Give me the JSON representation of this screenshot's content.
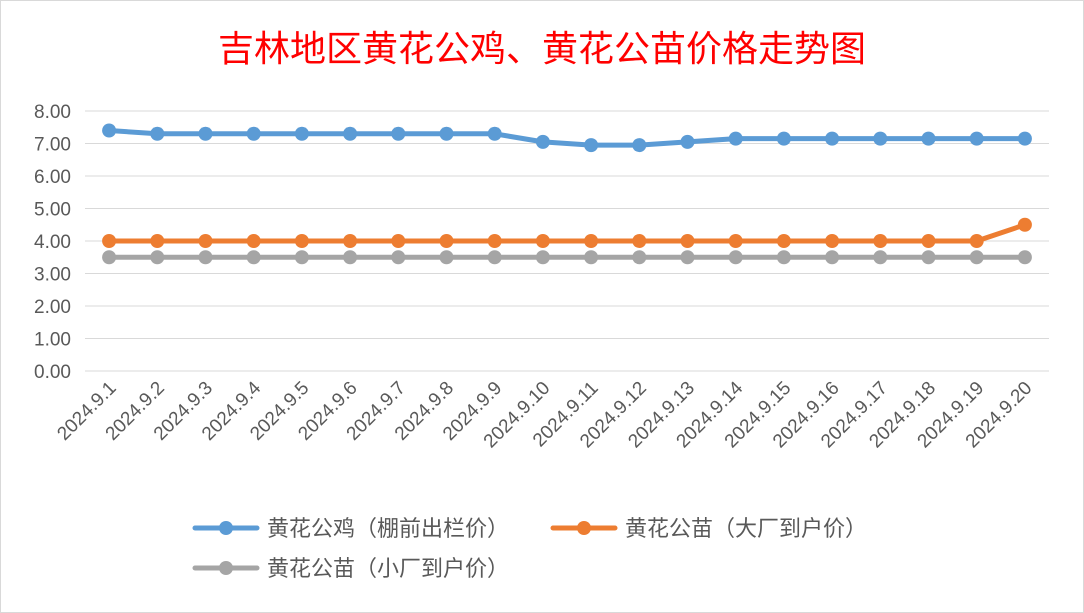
{
  "chart_data": {
    "type": "line",
    "title": "吉林地区黄花公鸡、黄花公苗价格走势图",
    "xlabel": "",
    "ylabel": "",
    "categories": [
      "2024.9.1",
      "2024.9.2",
      "2024.9.3",
      "2024.9.4",
      "2024.9.5",
      "2024.9.6",
      "2024.9.7",
      "2024.9.8",
      "2024.9.9",
      "2024.9.10",
      "2024.9.11",
      "2024.9.12",
      "2024.9.13",
      "2024.9.14",
      "2024.9.15",
      "2024.9.16",
      "2024.9.17",
      "2024.9.18",
      "2024.9.19",
      "2024.9.20"
    ],
    "ylim": [
      0,
      8
    ],
    "yticks": [
      "0.00",
      "1.00",
      "2.00",
      "3.00",
      "4.00",
      "5.00",
      "6.00",
      "7.00",
      "8.00"
    ],
    "grid": true,
    "legend_position": "bottom",
    "series": [
      {
        "name": "黄花公鸡（棚前出栏价）",
        "color": "#5B9BD5",
        "values": [
          7.4,
          7.3,
          7.3,
          7.3,
          7.3,
          7.3,
          7.3,
          7.3,
          7.3,
          7.05,
          6.95,
          6.95,
          7.05,
          7.15,
          7.15,
          7.15,
          7.15,
          7.15,
          7.15,
          7.15
        ]
      },
      {
        "name": "黄花公苗（大厂到户价）",
        "color": "#ED7D31",
        "values": [
          4,
          4,
          4,
          4,
          4,
          4,
          4,
          4,
          4,
          4,
          4,
          4,
          4,
          4,
          4,
          4,
          4,
          4,
          4,
          4.5
        ]
      },
      {
        "name": "黄花公苗（小厂到户价）",
        "color": "#A5A5A5",
        "values": [
          3.5,
          3.5,
          3.5,
          3.5,
          3.5,
          3.5,
          3.5,
          3.5,
          3.5,
          3.5,
          3.5,
          3.5,
          3.5,
          3.5,
          3.5,
          3.5,
          3.5,
          3.5,
          3.5,
          3.5
        ]
      }
    ]
  },
  "colors": {
    "title": "#FF0000",
    "gridline": "#D9D9D9",
    "axis_text": "#595959",
    "legend_text": "#595959"
  }
}
